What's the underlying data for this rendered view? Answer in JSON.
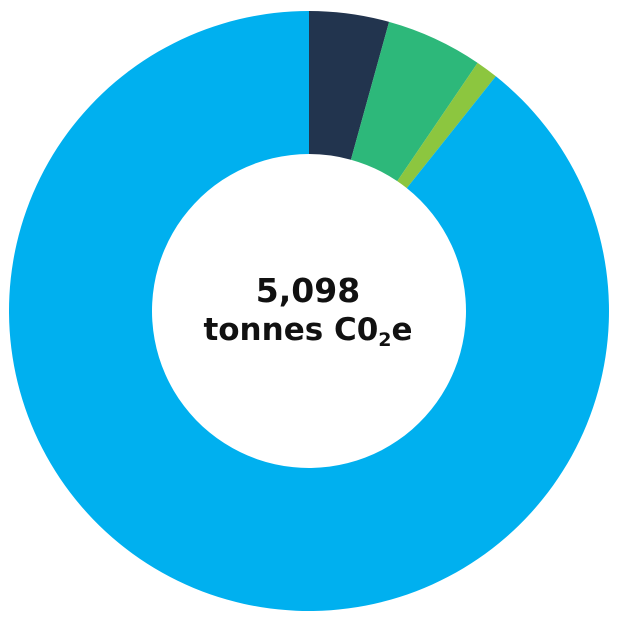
{
  "chart_data": {
    "type": "pie",
    "title": "",
    "center_label": {
      "value": "5,098",
      "unit_prefix": "tonnes C0",
      "unit_subscript": "2",
      "unit_suffix": "e"
    },
    "slices": [
      {
        "value": 4.3,
        "color": "#22344e"
      },
      {
        "value": 5.2,
        "color": "#2db87a"
      },
      {
        "value": 1.2,
        "color": "#8cc63f"
      },
      {
        "value": 89.3,
        "color": "#00b0ef"
      }
    ]
  }
}
